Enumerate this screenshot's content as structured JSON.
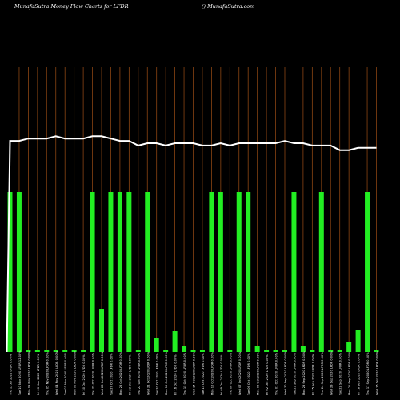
{
  "header": {
    "title": "MunafaSutra  Money Flow  Charts for LFDR",
    "credit": "() MunafaSutra.com"
  },
  "colors": {
    "background": "#000000",
    "grid": "#8B4513",
    "bar": "#22ee22",
    "line": "#ffffff",
    "label": "#ffffff"
  },
  "chart_data": {
    "type": "bar",
    "title": "MunafaSutra  Money Flow  Charts for LFDR",
    "xlabel": "",
    "ylabel": "",
    "ylim": [
      0,
      1
    ],
    "grid": true,
    "categories": [
      "Thu 15 Jul 2021 LFDR 0.00%",
      "Tue 10 Nov 2020 LFDR 12.00%",
      "Mon 09 Nov 2020 LFDR 0.00%",
      "Fri 06 Nov 2020 LFDR 0.00%",
      "Thu 05 Nov 2020 LFDR 0.00%",
      "Wed 04 Nov 2020 LFDR 0.00%",
      "Tue 03 Nov 2020 LFDR 0.00%",
      "Mon 02 Nov 2020 LFDR 0.00%",
      "Fri 30 Oct 2020 LFDR 0.00%",
      "Thu 29 Oct 2020 LFDR 0.00%",
      "Wed 28 Oct 2020 LFDR 0.00%",
      "Tue 27 Oct 2020 LFDR 0.00%",
      "Mon 26 Oct 2020 LFDR 0.00%",
      "Fri 23 Oct 2020 LFDR 0.00%",
      "Thu 22 Oct 2020 LFDR 0.00%",
      "Wed 21 Oct 2020 LFDR 0.00%",
      "Tue 20 Oct 2020 LFDR 0.00%",
      "Mon 19 Oct 2020 LFDR 0.00%",
      "Fri 16 Oct 2020 LFDR 0.00%",
      "Thu 15 Oct 2020 LFDR 0.00%",
      "Wed 14 Oct 2020 LFDR 0.00%",
      "Tue 13 Oct 2020 LFDR 0.00%",
      "Mon 12 Oct 2020 LFDR 0.00%",
      "Fri 09 Oct 2020 LFDR 0.00%",
      "Thu 08 Oct 2020 LFDR 0.00%",
      "Wed 07 Oct 2020 LFDR 0.00%",
      "Tue 06 Oct 2020 LFDR 0.00%",
      "Mon 05 Oct 2020 LFDR 0.00%",
      "Fri 02 Oct 2020 LFDR 0.00%",
      "Thu 01 Oct 2020 LFDR 0.00%",
      "Wed 30 Sep 2020 LFDR 0.00%",
      "Tue 29 Sep 2020 LFDR 0.00%",
      "Mon 28 Sep 2020 LFDR 0.00%",
      "Fri 25 Sep 2020 LFDR 0.00%",
      "Thu 24 Sep 2020 LFDR 0.00%",
      "Wed 23 Sep 2020 LFDR 0.00%",
      "Tue 22 Sep 2020 LFDR 0.00%",
      "Mon 21 Sep 2020 LFDR 0.00%",
      "Fri 18 Sep 2020 LFDR 0.00%",
      "Thu 17 Sep 2020 LFDR 0.00%",
      "Wed 16 Sep 2020 LFDR 0.00%"
    ],
    "series": [
      {
        "type": "bar",
        "values": [
          1,
          1,
          0,
          0,
          0,
          0,
          0,
          0,
          0,
          1,
          0.27,
          1,
          1,
          1,
          0,
          1,
          0.09,
          0,
          0.13,
          0.04,
          0,
          0,
          1,
          1,
          0,
          1,
          1,
          0.04,
          0,
          0,
          0,
          1,
          0.04,
          0,
          1,
          0,
          0,
          0.06,
          0.14,
          1,
          0
        ]
      },
      {
        "type": "line",
        "values": [
          0.91,
          0.91,
          0.92,
          0.92,
          0.92,
          0.93,
          0.92,
          0.92,
          0.92,
          0.93,
          0.93,
          0.92,
          0.91,
          0.91,
          0.89,
          0.9,
          0.9,
          0.89,
          0.9,
          0.9,
          0.9,
          0.89,
          0.89,
          0.9,
          0.89,
          0.9,
          0.9,
          0.9,
          0.9,
          0.9,
          0.91,
          0.9,
          0.9,
          0.89,
          0.89,
          0.89,
          0.87,
          0.87,
          0.88,
          0.88,
          0.88
        ]
      }
    ]
  }
}
